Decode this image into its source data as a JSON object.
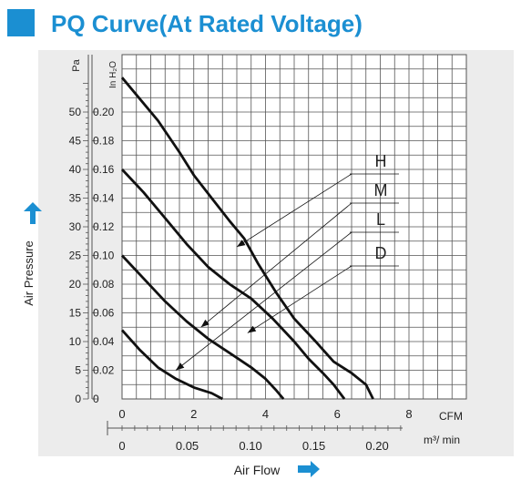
{
  "title": "PQ Curve(At Rated Voltage)",
  "colors": {
    "accent": "#1b8fd2",
    "panel": "#ececec",
    "grid": "#555555",
    "curve": "#111111",
    "text": "#222222"
  },
  "chart_data": {
    "type": "line",
    "xlabel": "Air Flow",
    "ylabel": "Air Pressure",
    "y_unit_left": "Pa",
    "y_unit_right": "In H₂O",
    "x_unit_cfm": "CFM",
    "x_unit_metric": "m³/ min",
    "xlim_cfm": [
      0,
      9.6
    ],
    "ylim_pa": [
      0,
      60
    ],
    "grid": true,
    "cfm_ticks": [
      "0",
      "2",
      "4",
      "6",
      "8"
    ],
    "metric_ticks": [
      {
        "label": "0",
        "value": 0
      },
      {
        "label": "0.05",
        "value": 0.05
      },
      {
        "label": "0.10",
        "value": 0.1
      },
      {
        "label": "0.15",
        "value": 0.15
      },
      {
        "label": "0.20",
        "value": 0.2
      }
    ],
    "pa_ticks": [
      "0",
      "5",
      "10",
      "15",
      "20",
      "25",
      "30",
      "35",
      "40",
      "45",
      "50"
    ],
    "inh2o_ticks": [
      "0",
      "0.02",
      "0.04",
      "0.06",
      "0.08",
      "0.10",
      "0.12",
      "0.14",
      "0.16",
      "0.18",
      "0.20"
    ],
    "series": [
      {
        "name": "H",
        "x": [
          0,
          1.0,
          1.6,
          2.0,
          2.5,
          3.0,
          3.4,
          3.8,
          4.3,
          4.8,
          5.4,
          5.9,
          6.4,
          6.8,
          7.0
        ],
        "y": [
          56.0,
          48.5,
          43.0,
          39.0,
          35.0,
          31.0,
          28.0,
          23.5,
          18.5,
          14.0,
          10.0,
          6.5,
          4.5,
          2.5,
          0
        ]
      },
      {
        "name": "M",
        "x": [
          0,
          0.6,
          1.2,
          1.8,
          2.4,
          3.0,
          3.6,
          4.2,
          4.8,
          5.2,
          5.6,
          5.9,
          6.2
        ],
        "y": [
          40.0,
          36.0,
          31.5,
          27.0,
          23.0,
          20.0,
          17.5,
          14.0,
          10.0,
          7.0,
          4.5,
          2.5,
          0
        ]
      },
      {
        "name": "L",
        "x": [
          0,
          0.6,
          1.2,
          1.8,
          2.4,
          3.0,
          3.6,
          4.0,
          4.3,
          4.5
        ],
        "y": [
          25.0,
          21.0,
          17.0,
          13.5,
          10.5,
          8.0,
          5.5,
          3.5,
          1.5,
          0
        ]
      },
      {
        "name": "D",
        "x": [
          0,
          0.5,
          1.0,
          1.5,
          2.0,
          2.5,
          2.8
        ],
        "y": [
          12.0,
          8.5,
          5.5,
          3.5,
          2.0,
          1.0,
          0
        ]
      }
    ],
    "callouts": [
      {
        "name": "H",
        "to_x": 3.2,
        "to_y": 26.5
      },
      {
        "name": "M",
        "to_x": 2.2,
        "to_y": 12.5
      },
      {
        "name": "L",
        "to_x": 1.5,
        "to_y": 5.0
      },
      {
        "name": "D",
        "to_x": 3.5,
        "to_y": 11.5
      }
    ]
  }
}
